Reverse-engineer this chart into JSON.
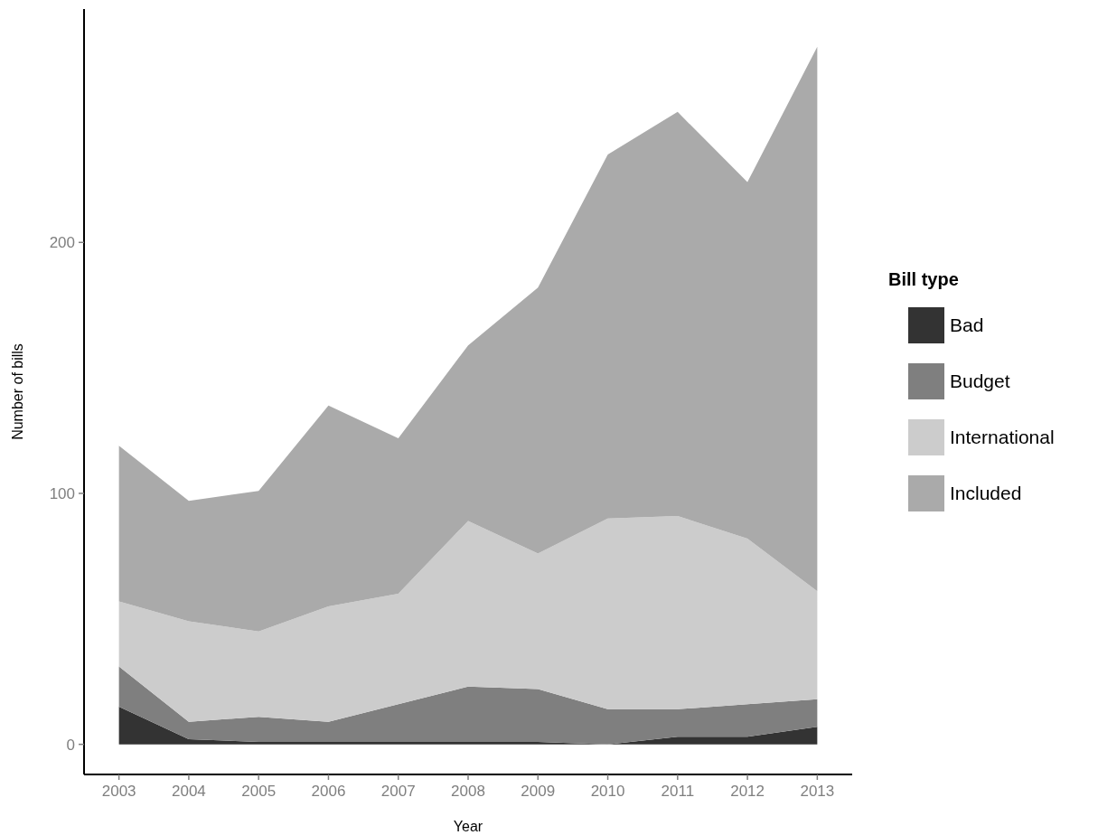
{
  "chart_data": {
    "type": "area",
    "stacked": true,
    "xlabel": "Year",
    "ylabel": "Number of bills",
    "legend_title": "Bill type",
    "legend": "right",
    "grid": false,
    "x": [
      2003,
      2004,
      2005,
      2006,
      2007,
      2008,
      2009,
      2010,
      2011,
      2012,
      2013
    ],
    "xlim": [
      2002.5,
      2013.5
    ],
    "xticks": [
      2003,
      2004,
      2005,
      2006,
      2007,
      2008,
      2009,
      2010,
      2011,
      2012,
      2013
    ],
    "ylim": [
      -12,
      293
    ],
    "yticks": [
      0,
      100,
      200
    ],
    "series": [
      {
        "name": "Bad",
        "color": "#333333",
        "values": [
          15,
          2,
          1,
          1,
          1,
          1,
          1,
          0,
          3,
          3,
          7
        ]
      },
      {
        "name": "Budget",
        "color": "#7f7f7f",
        "values": [
          16,
          7,
          10,
          8,
          15,
          22,
          21,
          14,
          11,
          13,
          11
        ]
      },
      {
        "name": "International",
        "color": "#cccccc",
        "values": [
          26,
          40,
          34,
          46,
          44,
          66,
          54,
          76,
          77,
          66,
          43
        ]
      },
      {
        "name": "Included",
        "color": "#aaaaaa",
        "values": [
          62,
          48,
          56,
          80,
          62,
          70,
          106,
          145,
          161,
          142,
          217
        ]
      }
    ]
  }
}
